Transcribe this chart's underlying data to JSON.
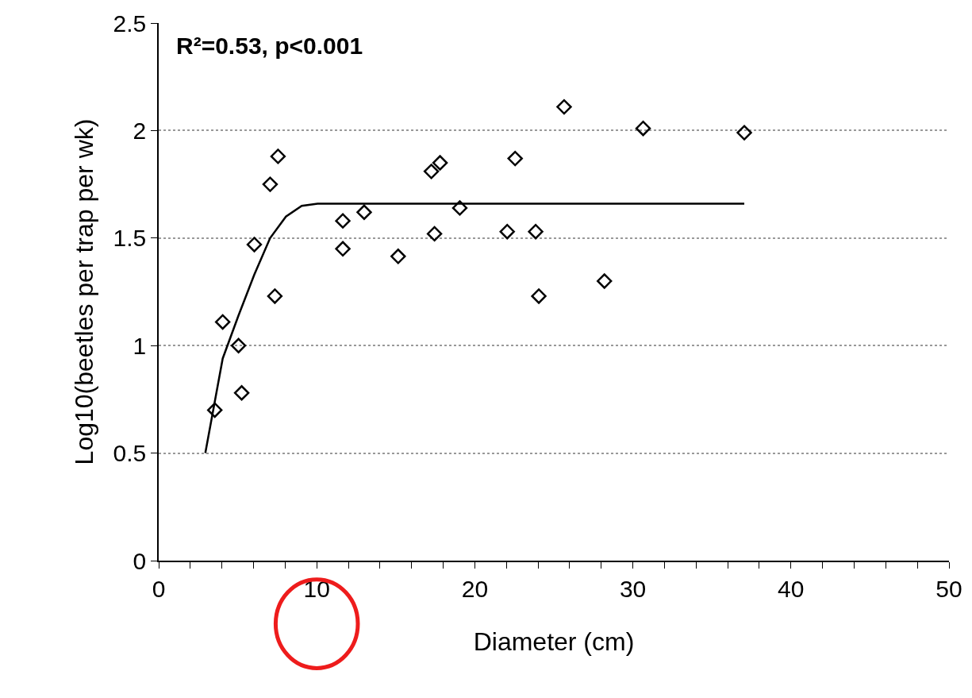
{
  "chart_data": {
    "type": "scatter",
    "xlabel": "Diameter (cm)",
    "ylabel": "Log10(beetles per trap per wk)",
    "annotations": [
      "R²=0.53, p<0.001"
    ],
    "series": [
      {
        "color": "#000000",
        "marker": "diamond",
        "x": [
          3.55,
          4.05,
          5.05,
          5.25,
          6.05,
          7.05,
          7.35,
          7.55,
          11.65,
          11.65,
          13.0,
          15.15,
          17.25,
          17.45,
          17.8,
          19.05,
          22.05,
          22.55,
          23.85,
          24.05,
          25.65,
          28.2,
          30.65,
          37.05
        ],
        "values": [
          0.7,
          1.11,
          1.0,
          0.78,
          1.47,
          1.75,
          1.23,
          1.88,
          1.45,
          1.58,
          1.62,
          1.415,
          1.81,
          1.52,
          1.85,
          1.64,
          1.53,
          1.87,
          1.53,
          1.23,
          2.11,
          1.3,
          2.01,
          1.99
        ]
      },
      {
        "type": "line",
        "color": "#000000",
        "x": [
          2.95,
          4.05,
          5.05,
          6.05,
          7.05,
          8.05,
          9.05,
          10.05,
          37.05
        ],
        "values": [
          0.5,
          0.94,
          1.14,
          1.33,
          1.5,
          1.6,
          1.65,
          1.66,
          1.66
        ]
      }
    ],
    "xlim": [
      0,
      50
    ],
    "xticks": [
      0,
      10,
      20,
      30,
      40,
      50
    ],
    "ylim": [
      0,
      2.5
    ],
    "yticks": [
      0,
      0.5,
      1,
      1.5,
      2,
      2.5
    ],
    "grid": "y"
  }
}
